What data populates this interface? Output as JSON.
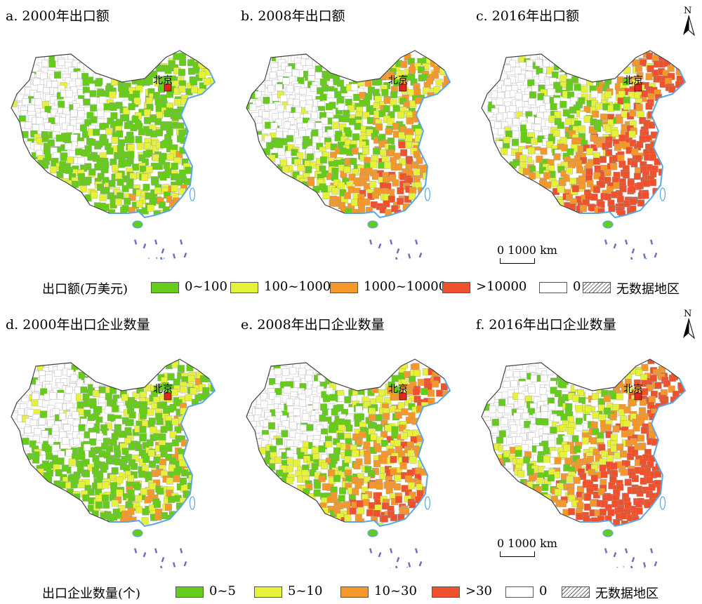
{
  "panels": [
    {
      "title": "a. 2000年出口额",
      "label": "北京",
      "seed": 11,
      "level": 0.18,
      "bins": "export"
    },
    {
      "title": "b. 2008年出口额",
      "label": "北京",
      "seed": 23,
      "level": 0.42,
      "bins": "export"
    },
    {
      "title": "c. 2016年出口额",
      "label": "北京",
      "seed": 37,
      "level": 0.7,
      "bins": "export"
    },
    {
      "title": "d. 2000年出口企业数量",
      "label": "北京",
      "seed": 41,
      "level": 0.22,
      "bins": "firm"
    },
    {
      "title": "e. 2008年出口企业数量",
      "label": "北京",
      "seed": 53,
      "level": 0.48,
      "bins": "firm"
    },
    {
      "title": "f. 2016年出口企业数量",
      "label": "北京",
      "seed": 67,
      "level": 0.72,
      "bins": "firm"
    }
  ],
  "legend_top": {
    "title": "出口额(万美元)",
    "items": [
      {
        "label": "0~100",
        "color": "#66cc1a"
      },
      {
        "label": "100~1000",
        "color": "#e6f23a"
      },
      {
        "label": "1000~10000",
        "color": "#f5982b"
      },
      {
        "label": ">10000",
        "color": "#f0512d"
      },
      {
        "label": "0",
        "color": "#ffffff"
      },
      {
        "label": "无数据地区",
        "color": "hatch"
      }
    ]
  },
  "legend_bottom": {
    "title": "出口企业数量(个)",
    "items": [
      {
        "label": "0~5",
        "color": "#66cc1a"
      },
      {
        "label": "5~10",
        "color": "#e6f23a"
      },
      {
        "label": "10~30",
        "color": "#f5982b"
      },
      {
        "label": ">30",
        "color": "#f0512d"
      },
      {
        "label": "0",
        "color": "#ffffff"
      },
      {
        "label": "无数据地区",
        "color": "hatch"
      }
    ]
  },
  "north_label": "N",
  "scale_label": "0    1000 km",
  "colors": {
    "border": "#444444",
    "coast": "#5aa6e6",
    "sea": "#6d6ec6"
  }
}
